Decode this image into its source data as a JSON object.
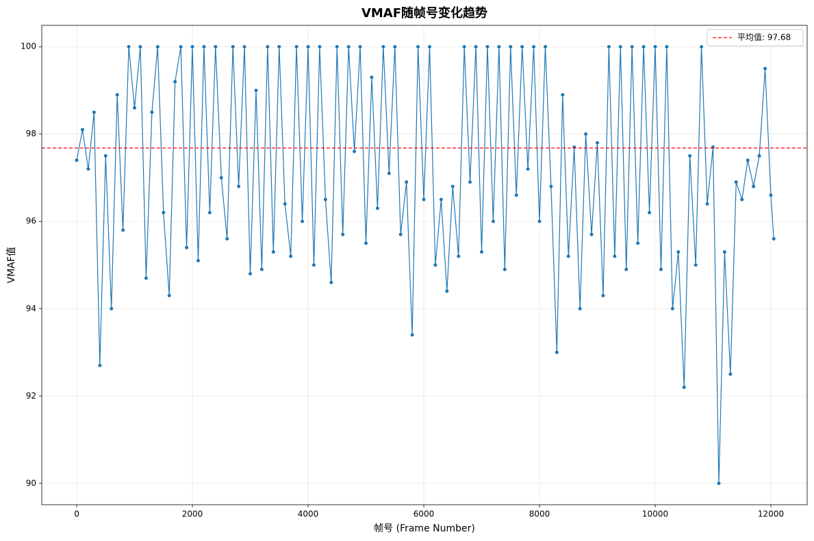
{
  "chart_data": {
    "type": "line",
    "title": "VMAF随帧号变化趋势",
    "x_label": "帧号 (Frame Number)",
    "y_label": "VMAF值",
    "x": [
      0,
      100,
      200,
      300,
      400,
      500,
      600,
      700,
      800,
      900,
      1000,
      1100,
      1200,
      1300,
      1400,
      1500,
      1600,
      1700,
      1800,
      1900,
      2000,
      2100,
      2200,
      2300,
      2400,
      2500,
      2600,
      2700,
      2800,
      2900,
      3000,
      3100,
      3200,
      3300,
      3400,
      3500,
      3600,
      3700,
      3800,
      3900,
      4000,
      4100,
      4200,
      4300,
      4400,
      4500,
      4600,
      4700,
      4800,
      4900,
      5000,
      5100,
      5200,
      5300,
      5400,
      5500,
      5600,
      5700,
      5800,
      5900,
      6000,
      6100,
      6200,
      6300,
      6400,
      6500,
      6600,
      6700,
      6800,
      6900,
      7000,
      7100,
      7200,
      7300,
      7400,
      7500,
      7600,
      7700,
      7800,
      7900,
      8000,
      8100,
      8200,
      8300,
      8400,
      8500,
      8600,
      8700,
      8800,
      8900,
      9000,
      9100,
      9200,
      9300,
      9400,
      9500,
      9600,
      9700,
      9800,
      9900,
      10000,
      10100,
      10200,
      10300,
      10400,
      10500,
      10600,
      10700,
      10800,
      10900,
      11000,
      11100,
      11200,
      11300,
      11400,
      11500,
      11600,
      11700,
      11800,
      11900,
      12000,
      12050
    ],
    "series": [
      {
        "color": "#1f77b4",
        "values": [
          97.4,
          98.1,
          97.2,
          98.5,
          92.7,
          97.5,
          94.0,
          98.9,
          95.8,
          100,
          98.6,
          100,
          94.7,
          98.5,
          100,
          96.2,
          94.3,
          99.2,
          100,
          95.4,
          100,
          95.1,
          100,
          96.2,
          100,
          97.0,
          95.6,
          100,
          96.8,
          100,
          94.8,
          99.0,
          94.9,
          100,
          95.3,
          100,
          96.4,
          95.2,
          100,
          96.0,
          100,
          95.0,
          100,
          96.5,
          94.6,
          100,
          95.7,
          100,
          97.6,
          100,
          95.5,
          99.3,
          96.3,
          100,
          97.1,
          100,
          95.7,
          96.9,
          93.4,
          100,
          96.5,
          100,
          95.0,
          96.5,
          94.4,
          96.8,
          95.2,
          100,
          96.9,
          100,
          95.3,
          100,
          96.0,
          100,
          94.9,
          100,
          96.6,
          100,
          97.2,
          100,
          96.0,
          100,
          96.8,
          93.0,
          98.9,
          95.2,
          97.7,
          94.0,
          98.0,
          95.7,
          97.8,
          94.3,
          100,
          95.2,
          100,
          94.9,
          100,
          95.5,
          100,
          96.2,
          100,
          94.9,
          100,
          94.0,
          95.3,
          92.2,
          97.5,
          95.0,
          100,
          96.4,
          97.7,
          90.0,
          95.3,
          92.5,
          96.9,
          96.5,
          97.4,
          96.8,
          97.5,
          99.5,
          96.6,
          95.6
        ]
      }
    ],
    "mean_line": {
      "label": "平均值: 97.68",
      "value": 97.68,
      "color": "#ff0000"
    },
    "legend_position": "upper right",
    "xlim": [
      -604,
      12627
    ],
    "ylim": [
      89.51,
      100.49
    ],
    "xticks": [
      0,
      2000,
      4000,
      6000,
      8000,
      10000,
      12000
    ],
    "yticks": [
      90,
      92,
      94,
      96,
      98,
      100
    ],
    "grid": true
  }
}
